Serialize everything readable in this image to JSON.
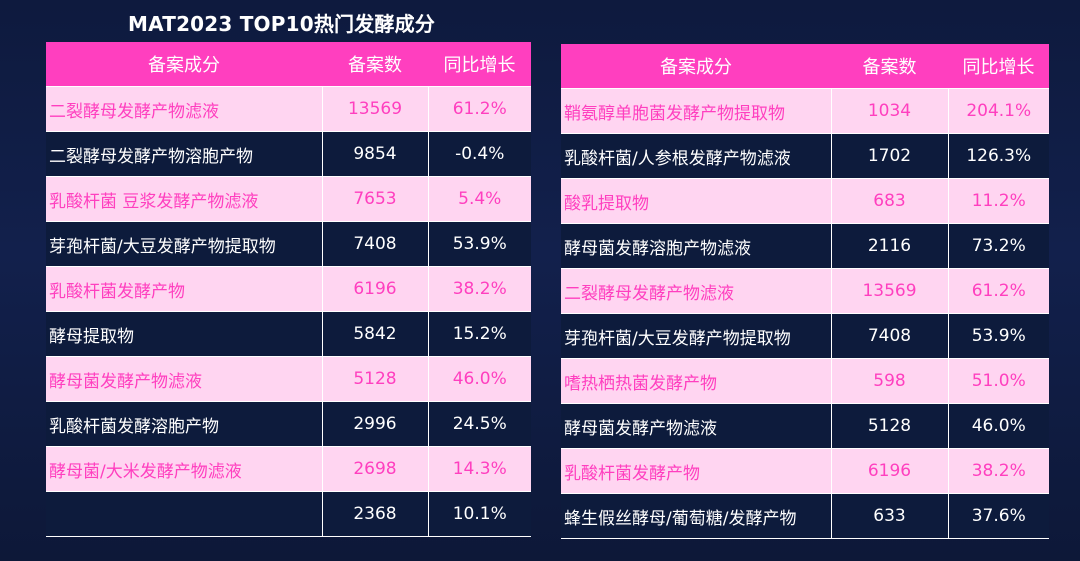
{
  "title": "MAT2023 TOP10热门发酵成分",
  "left_table": {
    "headers": [
      "备案成分",
      "备案数",
      "同比增长"
    ],
    "rows": [
      {
        "name": "二裂酵母发酵产物滤液",
        "count": "13569",
        "growth": "61.2%",
        "style": "pink"
      },
      {
        "name": "二裂酵母发酵产物溶胞产物",
        "count": "9854",
        "growth": "-0.4%",
        "style": "dark"
      },
      {
        "name": "乳酸杆菌 豆浆发酵产物滤液",
        "count": "7653",
        "growth": "5.4%",
        "style": "pink"
      },
      {
        "name": "芽孢杆菌/大豆发酵产物提取物",
        "count": "7408",
        "growth": "53.9%",
        "style": "dark"
      },
      {
        "name": "乳酸杆菌发酵产物",
        "count": "6196",
        "growth": "38.2%",
        "style": "pink"
      },
      {
        "name": "酵母提取物",
        "count": "5842",
        "growth": "15.2%",
        "style": "dark"
      },
      {
        "name": "酵母菌发酵产物滤液",
        "count": "5128",
        "growth": "46.0%",
        "style": "pink"
      },
      {
        "name": "乳酸杆菌发酵溶胞产物",
        "count": "2996",
        "growth": "24.5%",
        "style": "dark"
      },
      {
        "name": "酵母菌/大米发酵产物滤液",
        "count": "2698",
        "growth": "14.3%",
        "style": "pink"
      },
      {
        "name": "",
        "count": "2368",
        "growth": "10.1%",
        "style": "dark"
      }
    ]
  },
  "right_table": {
    "headers": [
      "备案成分",
      "备案数",
      "同比增长"
    ],
    "rows": [
      {
        "name": "鞘氨醇单胞菌发酵产物提取物",
        "count": "1034",
        "growth": "204.1%",
        "style": "pink"
      },
      {
        "name": "乳酸杆菌/人参根发酵产物滤液",
        "count": "1702",
        "growth": "126.3%",
        "style": "dark"
      },
      {
        "name": "酸乳提取物",
        "count": "683",
        "growth": "11.2%",
        "style": "pink"
      },
      {
        "name": "酵母菌发酵溶胞产物滤液",
        "count": "2116",
        "growth": "73.2%",
        "style": "dark"
      },
      {
        "name": "二裂酵母发酵产物滤液",
        "count": "13569",
        "growth": "61.2%",
        "style": "pink"
      },
      {
        "name": "芽孢杆菌/大豆发酵产物提取物",
        "count": "7408",
        "growth": "53.9%",
        "style": "dark"
      },
      {
        "name": "嗜热栖热菌发酵产物",
        "count": "598",
        "growth": "51.0%",
        "style": "pink"
      },
      {
        "name": "酵母菌发酵产物滤液",
        "count": "5128",
        "growth": "46.0%",
        "style": "dark"
      },
      {
        "name": "乳酸杆菌发酵产物",
        "count": "6196",
        "growth": "38.2%",
        "style": "pink"
      },
      {
        "name": "蜂生假丝酵母/葡萄糖/发酵产物",
        "count": "633",
        "growth": "37.6%",
        "style": "dark"
      }
    ]
  },
  "colors": {
    "header_bg": "#ff3fbf",
    "pink_row_bg": "#ffd5f1",
    "pink_row_text": "#ff3fbf",
    "dark_row_bg": "#0d1b3c",
    "dark_row_text": "#ffffff"
  }
}
